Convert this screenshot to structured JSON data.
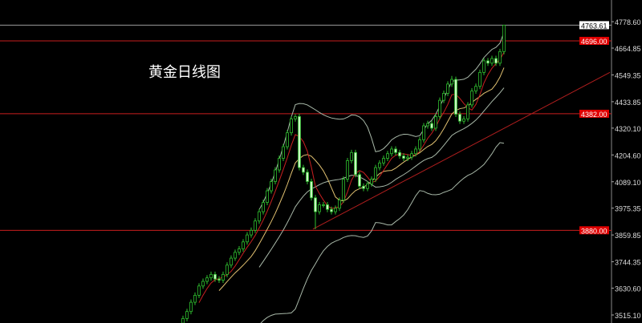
{
  "chart_data": {
    "type": "candlestick",
    "title": "黄金日线图",
    "y_ticks": [
      "4778.60",
      "4664.85",
      "4549.35",
      "4433.85",
      "4320.10",
      "4204.60",
      "4089.10",
      "3975.35",
      "3859.85",
      "3744.35",
      "3630.60",
      "3515.10"
    ],
    "ylim": [
      3480,
      4780
    ],
    "current_price": "4763.61",
    "horizontal_levels": [
      {
        "value": 4696,
        "color": "#c81e1e"
      },
      {
        "value": 4382,
        "color": "#c81e1e"
      },
      {
        "value": 3880,
        "color": "#c81e1e"
      }
    ],
    "trendline": {
      "from": [
        32.4,
        3885
      ],
      "to": [
        106.4,
        4560
      ],
      "color": "#b01e1e"
    },
    "indicators": {
      "ma_fast_color": "#c82020",
      "ma_mid_color": "#e0c070",
      "bollinger_color": "#a8b8a8",
      "up_color": "#2fbf2f",
      "down_color": "#c8f5c0"
    },
    "open": [
      3480,
      3500,
      3530,
      3570,
      3600,
      3640,
      3660,
      3675,
      3690,
      3670,
      3665,
      3690,
      3730,
      3760,
      3785,
      3800,
      3830,
      3860,
      3880,
      3920,
      3960,
      4000,
      4050,
      4090,
      4140,
      4190,
      4240,
      4300,
      4360,
      4370,
      4150,
      4130,
      4090,
      4020,
      3960,
      3990,
      3990,
      3970,
      3960,
      3975,
      4010,
      4100,
      4180,
      4215,
      4120,
      4070,
      4060,
      4080,
      4100,
      4150,
      4170,
      4190,
      4210,
      4230,
      4215,
      4200,
      4190,
      4195,
      4210,
      4230,
      4270,
      4330,
      4340,
      4320,
      4370,
      4440,
      4470,
      4510,
      4530,
      4380,
      4350,
      4360,
      4420,
      4480,
      4500,
      4560,
      4610,
      4600,
      4620,
      4600,
      4650
    ],
    "high": [
      3512,
      3542,
      3582,
      3612,
      3652,
      3672,
      3687,
      3702,
      3702,
      3682,
      3702,
      3742,
      3772,
      3797,
      3812,
      3842,
      3872,
      3892,
      3932,
      3972,
      4012,
      4062,
      4102,
      4152,
      4202,
      4252,
      4312,
      4372,
      4380,
      4382,
      4162,
      4142,
      4102,
      4032,
      4002,
      4002,
      4002,
      3982,
      3987,
      4022,
      4112,
      4192,
      4227,
      4227,
      4132,
      4082,
      4092,
      4112,
      4162,
      4182,
      4202,
      4222,
      4242,
      4242,
      4227,
      4212,
      4207,
      4222,
      4242,
      4282,
      4342,
      4352,
      4352,
      4382,
      4452,
      4482,
      4522,
      4545,
      4542,
      4392,
      4372,
      4432,
      4492,
      4512,
      4572,
      4622,
      4622,
      4632,
      4632,
      4662,
      4763.61
    ],
    "low": [
      3468,
      3488,
      3518,
      3558,
      3588,
      3628,
      3648,
      3663,
      3658,
      3653,
      3653,
      3678,
      3718,
      3748,
      3773,
      3788,
      3818,
      3848,
      3868,
      3908,
      3948,
      3988,
      4038,
      4078,
      4128,
      4178,
      4228,
      4288,
      4348,
      4138,
      4118,
      4078,
      4008,
      3885,
      3948,
      3978,
      3958,
      3948,
      3948,
      3963,
      3998,
      4088,
      4168,
      4108,
      4058,
      4048,
      4048,
      4068,
      4088,
      4138,
      4158,
      4178,
      4198,
      4203,
      4188,
      4178,
      4178,
      4183,
      4198,
      4218,
      4258,
      4318,
      4308,
      4308,
      4358,
      4428,
      4458,
      4498,
      4368,
      4338,
      4338,
      4348,
      4408,
      4468,
      4488,
      4548,
      4588,
      4588,
      4588,
      4588,
      4638
    ],
    "close": [
      3500,
      3530,
      3570,
      3600,
      3640,
      3660,
      3675,
      3690,
      3670,
      3665,
      3690,
      3730,
      3760,
      3785,
      3800,
      3830,
      3860,
      3880,
      3920,
      3960,
      4000,
      4050,
      4090,
      4140,
      4190,
      4240,
      4300,
      4360,
      4370,
      4150,
      4130,
      4090,
      4020,
      3960,
      3990,
      3990,
      3970,
      3960,
      3975,
      4010,
      4100,
      4180,
      4215,
      4120,
      4070,
      4060,
      4080,
      4100,
      4150,
      4170,
      4190,
      4210,
      4230,
      4215,
      4200,
      4190,
      4195,
      4210,
      4230,
      4270,
      4330,
      4340,
      4320,
      4370,
      4440,
      4470,
      4510,
      4530,
      4380,
      4350,
      4360,
      4420,
      4480,
      4500,
      4560,
      4610,
      4600,
      4620,
      4600,
      4650,
      4763.61
    ]
  }
}
